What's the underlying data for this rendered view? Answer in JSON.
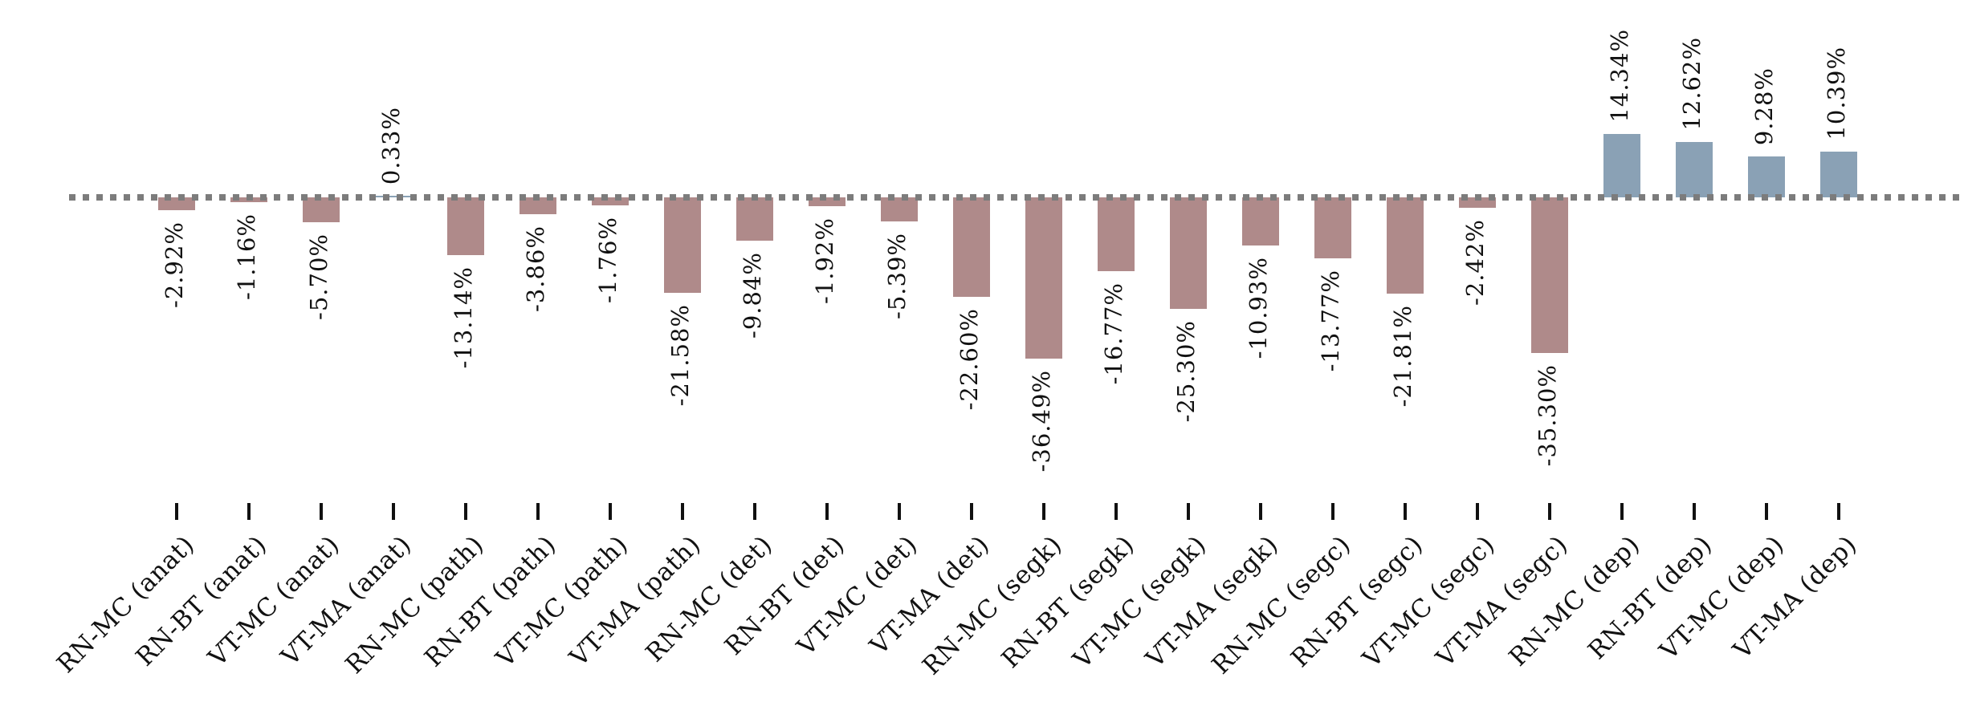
{
  "chart_data": {
    "type": "bar",
    "title": "",
    "xlabel": "",
    "ylabel": "",
    "grid": false,
    "legend": null,
    "ylim_pct": [
      -40,
      17
    ],
    "baseline": {
      "value": 0,
      "style": "dotted",
      "color": "#7c7c7c"
    },
    "colors": {
      "negative_bar": "#af8a8a",
      "positive_bar": "#8aa1b5",
      "tick": "#111111",
      "text": "#111111"
    },
    "categories": [
      "RN-MC (anat)",
      "RN-BT (anat)",
      "VT-MC (anat)",
      "VT-MA (anat)",
      "RN-MC (path)",
      "RN-BT (path)",
      "VT-MC (path)",
      "VT-MA (path)",
      "RN-MC (det)",
      "RN-BT (det)",
      "VT-MC (det)",
      "VT-MA (det)",
      "RN-MC (segk)",
      "RN-BT (segk)",
      "VT-MC (segk)",
      "VT-MA (segk)",
      "RN-MC (segc)",
      "RN-BT (segc)",
      "VT-MC (segc)",
      "VT-MA (segc)",
      "RN-MC (dep)",
      "RN-BT (dep)",
      "VT-MC (dep)",
      "VT-MA (dep)"
    ],
    "values": [
      -2.92,
      -1.16,
      -5.7,
      0.33,
      -13.14,
      -3.86,
      -1.76,
      -21.58,
      -9.84,
      -1.92,
      -5.39,
      -22.6,
      -36.49,
      -16.77,
      -25.3,
      -10.93,
      -13.77,
      -21.81,
      -2.42,
      -35.3,
      14.34,
      12.62,
      9.28,
      10.39
    ],
    "bar_labels": [
      "-2.92%",
      "-1.16%",
      "-5.70%",
      "0.33%",
      "-13.14%",
      "-3.86%",
      "-1.76%",
      "-21.58%",
      "-9.84%",
      "-1.92%",
      "-5.39%",
      "-22.60%",
      "-36.49%",
      "-16.77%",
      "-25.30%",
      "-10.93%",
      "-13.77%",
      "-21.81%",
      "-2.42%",
      "-35.30%",
      "14.34%",
      "12.62%",
      "9.28%",
      "10.39%"
    ]
  }
}
